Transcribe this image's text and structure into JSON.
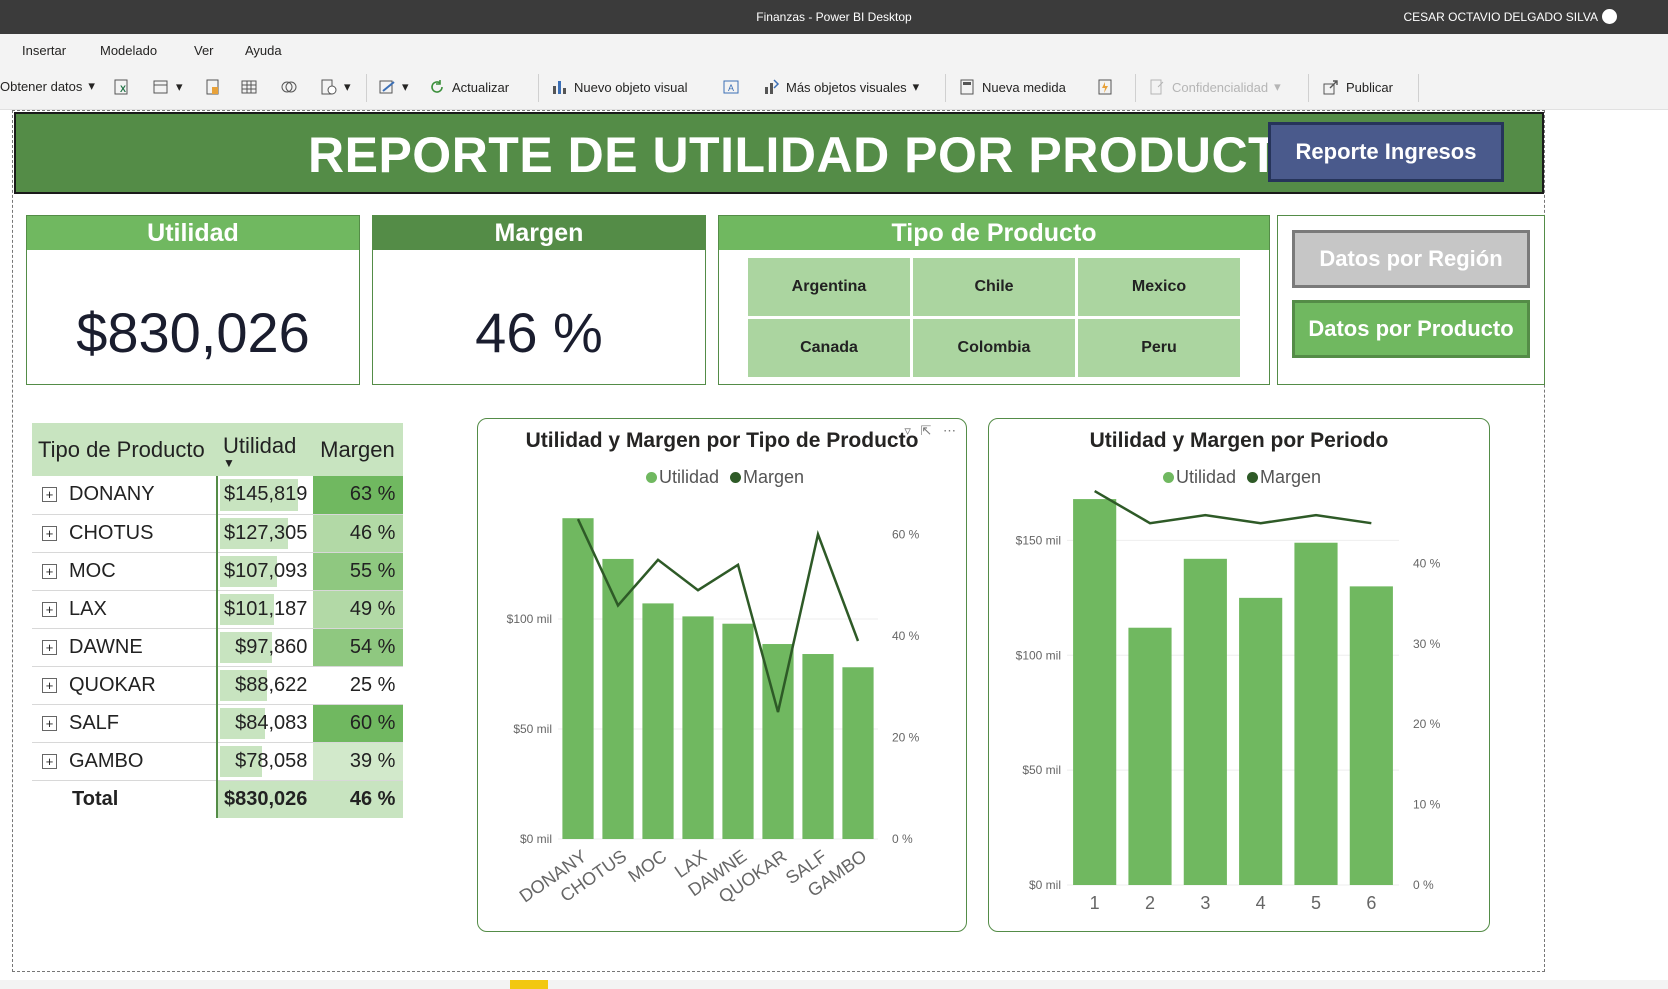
{
  "window": {
    "title": "Finanzas - Power BI Desktop",
    "user": "CESAR OCTAVIO DELGADO SILVA"
  },
  "menu": [
    "Insertar",
    "Modelado",
    "Ver",
    "Ayuda"
  ],
  "toolbar": {
    "get_data": "Obtener datos",
    "refresh": "Actualizar",
    "new_visual": "Nuevo objeto visual",
    "more_visuals": "Más objetos visuales",
    "new_measure": "Nueva medida",
    "sensitivity": "Confidencialidad",
    "publish": "Publicar"
  },
  "report": {
    "title": "REPORTE DE UTILIDAD POR PRODUCTO",
    "btn_ingresos": "Reporte Ingresos",
    "btn_region": "Datos por Región",
    "btn_producto": "Datos por Producto",
    "colors": {
      "header": "#548c47",
      "accent": "#70b860",
      "dark": "#2e5a27",
      "nav": "#4a5a8c"
    }
  },
  "cards": {
    "utilidad": {
      "label": "Utilidad",
      "value": "$830,026"
    },
    "margen": {
      "label": "Margen",
      "value": "46 %"
    }
  },
  "slicer": {
    "title": "Tipo de Producto",
    "items": [
      "Argentina",
      "Chile",
      "Mexico",
      "Canada",
      "Colombia",
      "Peru"
    ]
  },
  "matrix": {
    "headers": [
      "Tipo de Producto",
      "Utilidad",
      "Margen"
    ],
    "rows": [
      {
        "name": "DONANY",
        "utilidad": "$145,819",
        "margen": "63 %",
        "u": 145819,
        "m": 63
      },
      {
        "name": "CHOTUS",
        "utilidad": "$127,305",
        "margen": "46 %",
        "u": 127305,
        "m": 46
      },
      {
        "name": "MOC",
        "utilidad": "$107,093",
        "margen": "55 %",
        "u": 107093,
        "m": 55
      },
      {
        "name": "LAX",
        "utilidad": "$101,187",
        "margen": "49 %",
        "u": 101187,
        "m": 49
      },
      {
        "name": "DAWNE",
        "utilidad": "$97,860",
        "margen": "54 %",
        "u": 97860,
        "m": 54
      },
      {
        "name": "QUOKAR",
        "utilidad": "$88,622",
        "margen": "25 %",
        "u": 88622,
        "m": 25
      },
      {
        "name": "SALF",
        "utilidad": "$84,083",
        "margen": "60 %",
        "u": 84083,
        "m": 60
      },
      {
        "name": "GAMBO",
        "utilidad": "$78,058",
        "margen": "39 %",
        "u": 78058,
        "m": 39
      }
    ],
    "total": {
      "name": "Total",
      "utilidad": "$830,026",
      "margen": "46 %"
    }
  },
  "chart_data": [
    {
      "type": "bar",
      "title": "Utilidad y Margen por Tipo de Producto",
      "categories": [
        "DONANY",
        "CHOTUS",
        "MOC",
        "LAX",
        "DAWNE",
        "QUOKAR",
        "SALF",
        "GAMBO"
      ],
      "series": [
        {
          "name": "Utilidad",
          "kind": "bar",
          "axis": "left",
          "color": "#70b860",
          "values": [
            145819,
            127305,
            107093,
            101187,
            97860,
            88622,
            84083,
            78058
          ]
        },
        {
          "name": "Margen",
          "kind": "line",
          "axis": "right",
          "color": "#2e5a27",
          "values": [
            63,
            46,
            55,
            49,
            54,
            25,
            60,
            39
          ]
        }
      ],
      "ylim_left": [
        0,
        150000
      ],
      "yticks_left": [
        "$0 mil",
        "$50 mil",
        "$100 mil"
      ],
      "ylim_right": [
        0,
        65
      ],
      "yticks_right": [
        "0 %",
        "20 %",
        "40 %",
        "60 %"
      ],
      "legend": "top-center"
    },
    {
      "type": "bar",
      "title": "Utilidad y Margen por Periodo",
      "categories": [
        "1",
        "2",
        "3",
        "4",
        "5",
        "6"
      ],
      "series": [
        {
          "name": "Utilidad",
          "kind": "bar",
          "axis": "left",
          "color": "#70b860",
          "values": [
            168000,
            112000,
            142000,
            125000,
            149000,
            130000
          ]
        },
        {
          "name": "Margen",
          "kind": "line",
          "axis": "right",
          "color": "#2e5a27",
          "values": [
            49,
            45,
            46,
            45,
            46,
            45
          ]
        }
      ],
      "ylim_left": [
        0,
        175000
      ],
      "yticks_left": [
        "$0 mil",
        "$50 mil",
        "$100 mil",
        "$150 mil"
      ],
      "ylim_right": [
        0,
        50
      ],
      "yticks_right": [
        "0 %",
        "10 %",
        "20 %",
        "30 %",
        "40 %"
      ],
      "legend": "top-center"
    }
  ]
}
